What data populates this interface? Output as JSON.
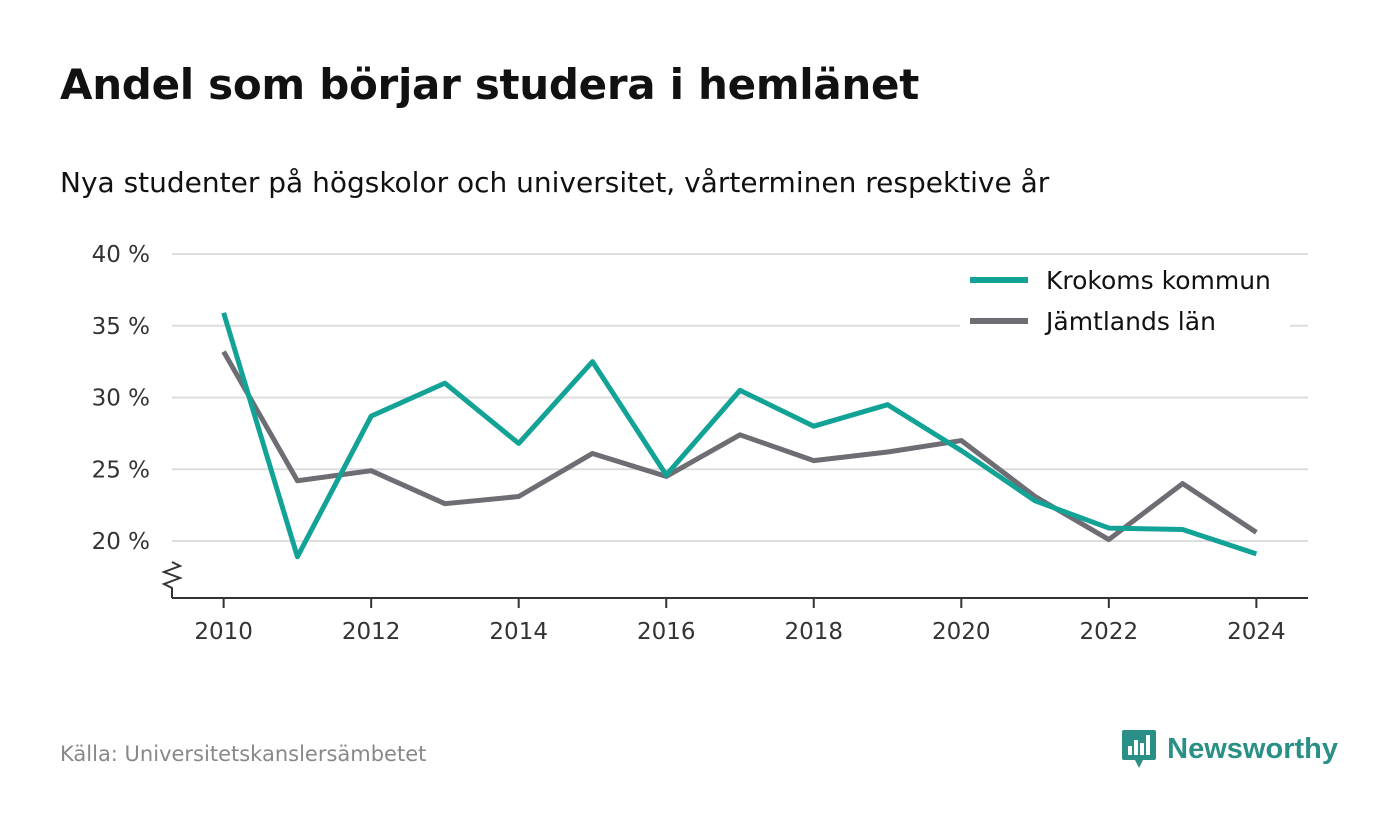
{
  "title": "Andel som börjar studera i hemlänet",
  "subtitle": "Nya studenter på högskolor och universitet, vårterminen respektive år",
  "source": "Källa: Universitetskanslersämbetet",
  "brand": {
    "name": "Newsworthy",
    "icon": "newsworthy-logo-icon",
    "color": "#2a8f86"
  },
  "chart_data": {
    "type": "line",
    "x": [
      2010,
      2011,
      2012,
      2013,
      2014,
      2015,
      2016,
      2017,
      2018,
      2019,
      2020,
      2021,
      2022,
      2023,
      2024
    ],
    "series": [
      {
        "name": "Krokoms kommun",
        "color": "#13a396",
        "values": [
          35.9,
          18.9,
          28.7,
          31.0,
          26.8,
          32.5,
          24.6,
          30.5,
          28.0,
          29.5,
          26.3,
          22.8,
          20.9,
          20.8,
          19.1
        ]
      },
      {
        "name": "Jämtlands län",
        "color": "#6e6d73",
        "values": [
          33.2,
          24.2,
          24.9,
          22.6,
          23.1,
          26.1,
          24.5,
          27.4,
          25.6,
          26.2,
          27.0,
          23.1,
          20.1,
          24.0,
          20.6
        ]
      }
    ],
    "xticks": [
      2010,
      2012,
      2014,
      2016,
      2018,
      2020,
      2022,
      2024
    ],
    "xtick_labels": [
      "2010",
      "2012",
      "2014",
      "2016",
      "2018",
      "2020",
      "2022",
      "2024"
    ],
    "yticks": [
      20,
      25,
      30,
      35,
      40
    ],
    "ytick_labels": [
      "20 %",
      "25 %",
      "30 %",
      "35 %",
      "40 %"
    ],
    "ylim": [
      16,
      40
    ],
    "xlim": [
      2009.3,
      2024.7
    ],
    "grid": true,
    "axis_break": true,
    "legend_position": "top-right"
  }
}
